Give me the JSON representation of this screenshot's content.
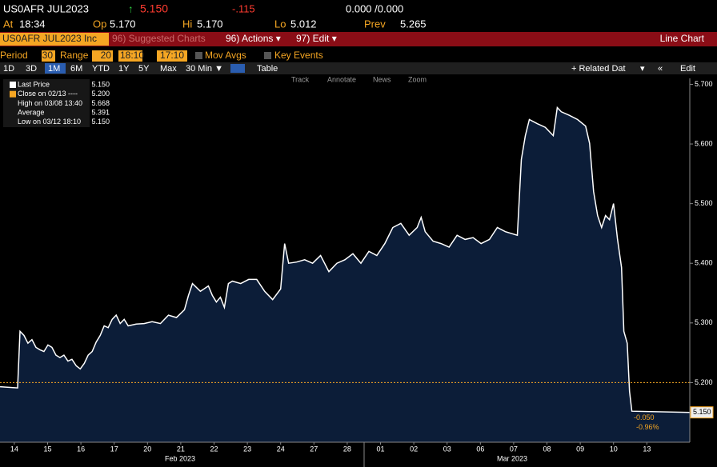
{
  "header": {
    "ticker": "US0AFR JUL2023",
    "arrow": "↑",
    "last": "5.150",
    "change": "-.115",
    "bid_ask": "0.000 /0.000",
    "quote": [
      {
        "label": "At",
        "value": "18:34"
      },
      {
        "label": "Op",
        "value": "5.170"
      },
      {
        "label": "Hi",
        "value": "5.170"
      },
      {
        "label": "Lo",
        "value": "5.012"
      },
      {
        "label": "Prev",
        "value": "5.265"
      }
    ]
  },
  "toolbar": {
    "security": "US0AFR JUL2023 Inc",
    "suggested": "96) Suggested Charts",
    "actions": "96) Actions ▾",
    "edit": "97) Edit ▾",
    "chart_type": "Line Chart"
  },
  "settings": {
    "period_label": "Period",
    "period": "30",
    "range_label": "Range",
    "range": "20",
    "start": "18:10",
    "end": "17:10",
    "mov_avgs": "Mov Avgs",
    "key_events": "Key Events"
  },
  "ranges": [
    "1D",
    "3D",
    "1M",
    "6M",
    "YTD",
    "1Y",
    "5Y",
    "Max",
    "30 Min ▼",
    "Table"
  ],
  "right_tools": [
    "+ Related Dat",
    "▾",
    "«",
    "Edit"
  ],
  "chart_tools": [
    "Track",
    "Annotate",
    "News",
    "Zoom"
  ],
  "chart_data": {
    "type": "area",
    "grid": false,
    "legend": [
      {
        "label": "Last Price",
        "value": "5.150",
        "color": "#ffffff"
      },
      {
        "label": "Close on 02/13 ----",
        "value": "5.200",
        "color": "#f5a623"
      },
      {
        "label": "High on 03/08 13:40",
        "value": "5.668"
      },
      {
        "label": "Average",
        "value": "5.391"
      },
      {
        "label": "Low on 03/12 18:10",
        "value": "5.150"
      }
    ],
    "x": [
      -0.43,
      0.1,
      0.17,
      0.29,
      0.41,
      0.53,
      0.65,
      0.77,
      0.89,
      1.01,
      1.13,
      1.25,
      1.37,
      1.49,
      1.61,
      1.73,
      1.86,
      1.98,
      2.1,
      2.22,
      2.34,
      2.46,
      2.58,
      2.7,
      2.82,
      2.94,
      3.06,
      3.18,
      3.3,
      3.42,
      3.66,
      3.9,
      4.14,
      4.39,
      4.63,
      4.87,
      5.11,
      5.23,
      5.35,
      5.59,
      5.83,
      5.95,
      6.07,
      6.19,
      6.31,
      6.43,
      6.55,
      6.8,
      7.04,
      7.28,
      7.52,
      7.76,
      8.0,
      8.12,
      8.24,
      8.48,
      8.72,
      8.96,
      9.2,
      9.45,
      9.69,
      9.93,
      10.17,
      10.41,
      10.65,
      10.89,
      11.13,
      11.37,
      11.61,
      11.86,
      12.1,
      12.22,
      12.34,
      12.58,
      12.82,
      13.06,
      13.3,
      13.54,
      13.78,
      14.02,
      14.27,
      14.51,
      14.75,
      15.11,
      15.23,
      15.35,
      15.47,
      15.71,
      15.95,
      16.19,
      16.31,
      16.43,
      16.67,
      16.92,
      17.16,
      17.28,
      17.4,
      17.52,
      17.64,
      17.76,
      17.88,
      18.0,
      18.12,
      18.24,
      18.31,
      18.41,
      18.48,
      18.55,
      20.29
    ],
    "series": [
      {
        "name": "Last Price",
        "color": "#ffffff",
        "fill": "#0c1d38",
        "values": [
          5.193,
          5.191,
          5.286,
          5.279,
          5.266,
          5.272,
          5.259,
          5.255,
          5.252,
          5.263,
          5.259,
          5.246,
          5.242,
          5.246,
          5.236,
          5.239,
          5.228,
          5.223,
          5.232,
          5.246,
          5.252,
          5.268,
          5.279,
          5.295,
          5.292,
          5.306,
          5.313,
          5.299,
          5.306,
          5.295,
          5.298,
          5.299,
          5.302,
          5.299,
          5.313,
          5.309,
          5.322,
          5.346,
          5.366,
          5.353,
          5.362,
          5.346,
          5.335,
          5.343,
          5.326,
          5.366,
          5.37,
          5.366,
          5.373,
          5.373,
          5.353,
          5.339,
          5.357,
          5.433,
          5.4,
          5.402,
          5.406,
          5.4,
          5.413,
          5.386,
          5.4,
          5.406,
          5.416,
          5.4,
          5.42,
          5.413,
          5.433,
          5.46,
          5.467,
          5.447,
          5.46,
          5.477,
          5.453,
          5.437,
          5.433,
          5.427,
          5.447,
          5.44,
          5.443,
          5.433,
          5.44,
          5.46,
          5.453,
          5.447,
          5.574,
          5.614,
          5.641,
          5.634,
          5.628,
          5.614,
          5.661,
          5.654,
          5.648,
          5.641,
          5.63,
          5.601,
          5.52,
          5.48,
          5.46,
          5.48,
          5.473,
          5.5,
          5.44,
          5.393,
          5.286,
          5.266,
          5.185,
          5.152,
          5.15
        ]
      }
    ],
    "reference_line": 5.2,
    "reference_color": "#f5a623",
    "annotations": [
      "5.150",
      "-0.050",
      "-0.96%"
    ],
    "xlim": [
      -0.43,
      20.29
    ],
    "xticks": [
      {
        "value": 0,
        "label": "14"
      },
      {
        "value": 1,
        "label": "15"
      },
      {
        "value": 2,
        "label": "16"
      },
      {
        "value": 3,
        "label": "17"
      },
      {
        "value": 4,
        "label": "20"
      },
      {
        "value": 5,
        "label": "21"
      },
      {
        "value": 6,
        "label": "22"
      },
      {
        "value": 7,
        "label": "23"
      },
      {
        "value": 8,
        "label": "24"
      },
      {
        "value": 9,
        "label": "27"
      },
      {
        "value": 10,
        "label": "28"
      },
      {
        "value": 11,
        "label": "01"
      },
      {
        "value": 12,
        "label": "02"
      },
      {
        "value": 13,
        "label": "03"
      },
      {
        "value": 14,
        "label": "06"
      },
      {
        "value": 15,
        "label": "07"
      },
      {
        "value": 16,
        "label": "08"
      },
      {
        "value": 17,
        "label": "09"
      },
      {
        "value": 18,
        "label": "10"
      },
      {
        "value": 19,
        "label": "13"
      }
    ],
    "period_labels": [
      "Feb 2023",
      "Mar 2023"
    ],
    "ylim": [
      5.1,
      5.71
    ],
    "yticks": [
      {
        "value": 5.2,
        "label": "5.200"
      },
      {
        "value": 5.3,
        "label": "5.300"
      },
      {
        "value": 5.4,
        "label": "5.400"
      },
      {
        "value": 5.5,
        "label": "5.500"
      },
      {
        "value": 5.6,
        "label": "5.600"
      },
      {
        "value": 5.7,
        "label": "5.700"
      }
    ]
  }
}
